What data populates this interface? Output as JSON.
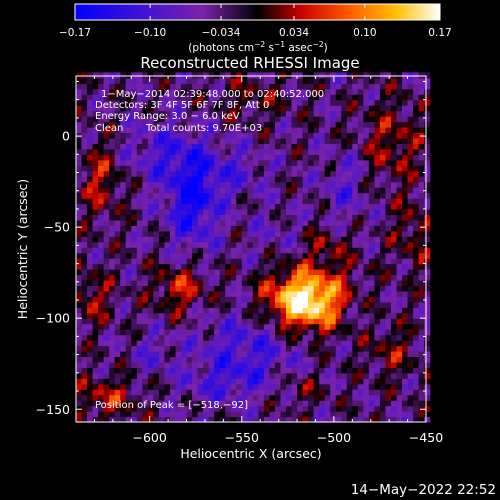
{
  "chart_data": {
    "type": "heatmap",
    "title": "Reconstructed RHESSI Image",
    "xlabel": "Heliocentric X (arcsec)",
    "ylabel": "Heliocentric Y (arcsec)",
    "xlim": [
      -640,
      -450
    ],
    "ylim": [
      -157,
      33
    ],
    "x_ticks": [
      -600,
      -550,
      -500,
      -450
    ],
    "y_ticks": [
      0,
      -50,
      -100,
      -150
    ],
    "colorbar": {
      "ticks": [
        -0.17,
        -0.1,
        -0.034,
        0.034,
        0.1,
        0.17
      ],
      "tick_labels": [
        "−0.17",
        "−0.10",
        "−0.034",
        "0.034",
        "0.10",
        "0.17"
      ],
      "label_parts": [
        "(photons cm",
        "−2",
        " s",
        "−1",
        " asec",
        "−2",
        ")"
      ],
      "min": -0.17,
      "max": 0.17
    },
    "annotations": [
      "1−May−2014 02:39:48.000 to 02:40:52.000",
      "Detectors: 3F 4F 5F 6F 7F 8F, Att 0",
      "Energy Range: 3.0 − 6.0 keV",
      "Clean",
      "Total counts: 9.70E+03"
    ],
    "peak_label": "Position of Peak = [−518,−92]",
    "peak_position": [
      -518,
      -92
    ],
    "colors": {
      "background": "#000000",
      "text": "#ffffff"
    }
  },
  "footer": {
    "timestamp": "14−May−2022 22:52"
  }
}
